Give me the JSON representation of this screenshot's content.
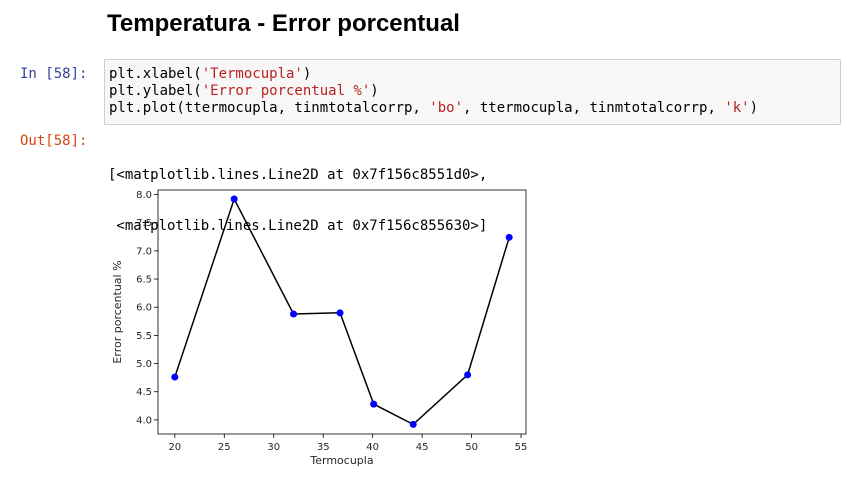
{
  "heading": "Temperatura - Error porcentual",
  "cell": {
    "in_prompt": "In [58]:",
    "code": [
      {
        "pre": "plt.xlabel(",
        "str": "'Termocupla'",
        "post": ")"
      },
      {
        "pre": "plt.ylabel(",
        "str": "'Error porcentual %'",
        "post": ")"
      },
      {
        "pre": "plt.plot(ttermocupla, tinmtotalcorrp, ",
        "str": "'bo'",
        "mid": ", ttermocupla, tinmtotalcorrp, ",
        "str2": "'k'",
        "post": ")"
      }
    ],
    "out_prompt": "Out[58]:",
    "output": [
      "[<matplotlib.lines.Line2D at 0x7f156c8551d0>,",
      " <matplotlib.lines.Line2D at 0x7f156c855630>]"
    ]
  },
  "chart_data": {
    "type": "line",
    "xlabel": "Termocupla",
    "ylabel": "Error porcentual %",
    "x": [
      20,
      26,
      32,
      36.7,
      40.1,
      44.1,
      49.6,
      53.8
    ],
    "y": [
      4.76,
      7.92,
      5.88,
      5.9,
      4.28,
      3.92,
      4.8,
      7.24
    ],
    "xlim": [
      18.3,
      55.5
    ],
    "ylim": [
      3.75,
      8.08
    ],
    "xticks": [
      "20",
      "25",
      "30",
      "35",
      "40",
      "45",
      "50",
      "55"
    ],
    "yticks": [
      "4.0",
      "4.5",
      "5.0",
      "5.5",
      "6.0",
      "6.5",
      "7.0",
      "7.5",
      "8.0"
    ],
    "series": [
      {
        "style": "markers",
        "color": "#0000ff"
      },
      {
        "style": "line",
        "color": "#000000"
      }
    ],
    "grid": false
  }
}
